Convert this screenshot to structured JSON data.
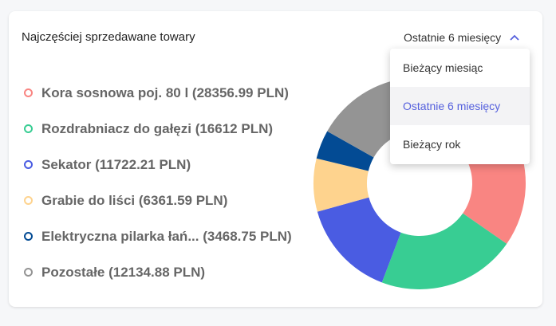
{
  "widget": {
    "title": "Najczęściej sprzedawane towary",
    "period_selected": "Ostatnie 6 miesięcy",
    "period_icon": "chevron-up-icon",
    "accent_color": "#5560dd"
  },
  "menu": {
    "options": [
      {
        "label": "Bieżący miesiąc",
        "selected": false
      },
      {
        "label": "Ostatnie 6 miesięcy",
        "selected": true
      },
      {
        "label": "Bieżący rok",
        "selected": false
      }
    ]
  },
  "legend": [
    {
      "label": "Kora sosnowa poj. 80 l (28356.99 PLN)",
      "color": "#f98582"
    },
    {
      "label": "Rozdrabniacz do gałęzi (16612 PLN)",
      "color": "#38cd93"
    },
    {
      "label": "Sekator (11722.21 PLN)",
      "color": "#4a5ce2"
    },
    {
      "label": "Grabie do liści (6361.59 PLN)",
      "color": "#fed38e"
    },
    {
      "label": "Elektryczna pilarka łań... (3468.75 PLN)",
      "color": "#034b94"
    },
    {
      "label": "Pozostałe (12134.88 PLN)",
      "color": "#949494"
    }
  ],
  "chart_data": {
    "type": "pie",
    "variant": "donut",
    "title": "Najczęściej sprzedawane towary",
    "unit": "PLN",
    "categories": [
      "Kora sosnowa poj. 80 l",
      "Rozdrabniacz do gałęzi",
      "Sekator",
      "Grabie do liści",
      "Elektryczna pilarka łań...",
      "Pozostałe"
    ],
    "values": [
      28356.99,
      16612,
      11722.21,
      6361.59,
      3468.75,
      12134.88
    ],
    "colors": [
      "#f98582",
      "#38cd93",
      "#4a5ce2",
      "#fed38e",
      "#034b94",
      "#949494"
    ],
    "legend_position": "left"
  }
}
